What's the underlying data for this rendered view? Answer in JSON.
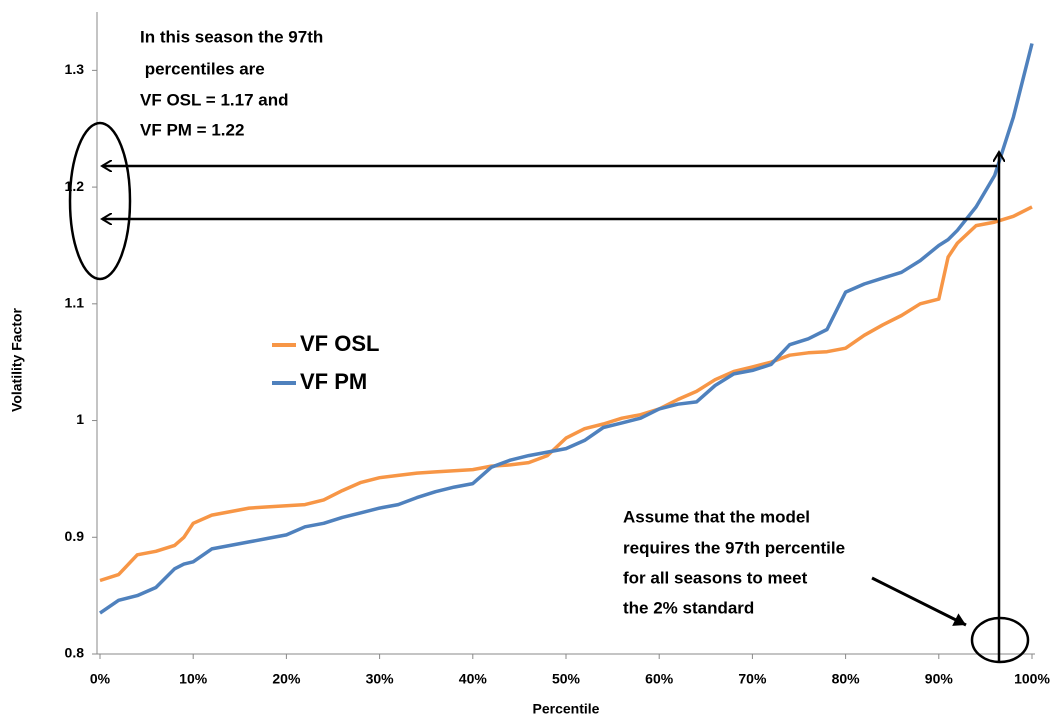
{
  "chart_data": {
    "type": "line",
    "x_label": "Percentile",
    "y_label": "Volatility Factor",
    "x": [
      0,
      2,
      4,
      6,
      8,
      9,
      10,
      12,
      14,
      16,
      18,
      20,
      22,
      24,
      26,
      28,
      30,
      32,
      34,
      36,
      38,
      40,
      42,
      44,
      46,
      48,
      50,
      52,
      54,
      56,
      58,
      60,
      62,
      64,
      66,
      68,
      70,
      72,
      74,
      76,
      78,
      80,
      82,
      84,
      86,
      88,
      90,
      91,
      92,
      94,
      96,
      98,
      100
    ],
    "series": [
      {
        "name": "VF OSL",
        "color": "#f79646",
        "values": [
          0.863,
          0.868,
          0.885,
          0.888,
          0.893,
          0.9,
          0.912,
          0.919,
          0.922,
          0.925,
          0.926,
          0.927,
          0.928,
          0.932,
          0.94,
          0.947,
          0.951,
          0.953,
          0.955,
          0.956,
          0.957,
          0.958,
          0.961,
          0.962,
          0.964,
          0.97,
          0.985,
          0.993,
          0.997,
          1.002,
          1.005,
          1.01,
          1.018,
          1.025,
          1.035,
          1.042,
          1.046,
          1.05,
          1.056,
          1.058,
          1.059,
          1.062,
          1.073,
          1.082,
          1.09,
          1.1,
          1.104,
          1.14,
          1.152,
          1.167,
          1.17,
          1.175,
          1.183
        ]
      },
      {
        "name": "VF PM",
        "color": "#4f81bd",
        "values": [
          0.835,
          0.846,
          0.85,
          0.857,
          0.873,
          0.877,
          0.879,
          0.89,
          0.893,
          0.896,
          0.899,
          0.902,
          0.909,
          0.912,
          0.917,
          0.921,
          0.925,
          0.928,
          0.934,
          0.939,
          0.943,
          0.946,
          0.96,
          0.966,
          0.97,
          0.973,
          0.976,
          0.983,
          0.994,
          0.998,
          1.002,
          1.01,
          1.014,
          1.016,
          1.03,
          1.04,
          1.043,
          1.048,
          1.065,
          1.07,
          1.078,
          1.11,
          1.117,
          1.122,
          1.127,
          1.137,
          1.15,
          1.155,
          1.163,
          1.183,
          1.21,
          1.26,
          1.323
        ]
      }
    ],
    "xlim": [
      0,
      100
    ],
    "xticks": [
      {
        "value": 0,
        "label": "0%"
      },
      {
        "value": 10,
        "label": "10%"
      },
      {
        "value": 20,
        "label": "20%"
      },
      {
        "value": 30,
        "label": "30%"
      },
      {
        "value": 40,
        "label": "40%"
      },
      {
        "value": 50,
        "label": "50%"
      },
      {
        "value": 60,
        "label": "60%"
      },
      {
        "value": 70,
        "label": "70%"
      },
      {
        "value": 80,
        "label": "80%"
      },
      {
        "value": 90,
        "label": "90%"
      },
      {
        "value": 100,
        "label": "100%"
      }
    ],
    "ylim": [
      0.8,
      1.35
    ],
    "yticks": [
      0.8,
      0.9,
      1,
      1.1,
      1.2,
      1.3
    ],
    "grid": false,
    "legend": "left",
    "annotations": [
      {
        "lines": [
          "In this season the 97th",
          " percentiles are",
          "VF OSL = 1.17 and",
          "VF PM = 1.22"
        ]
      },
      {
        "lines": [
          "Assume that the model",
          "requires the 97th percentile",
          "for all seasons to meet",
          "the 2% standard"
        ]
      }
    ]
  }
}
